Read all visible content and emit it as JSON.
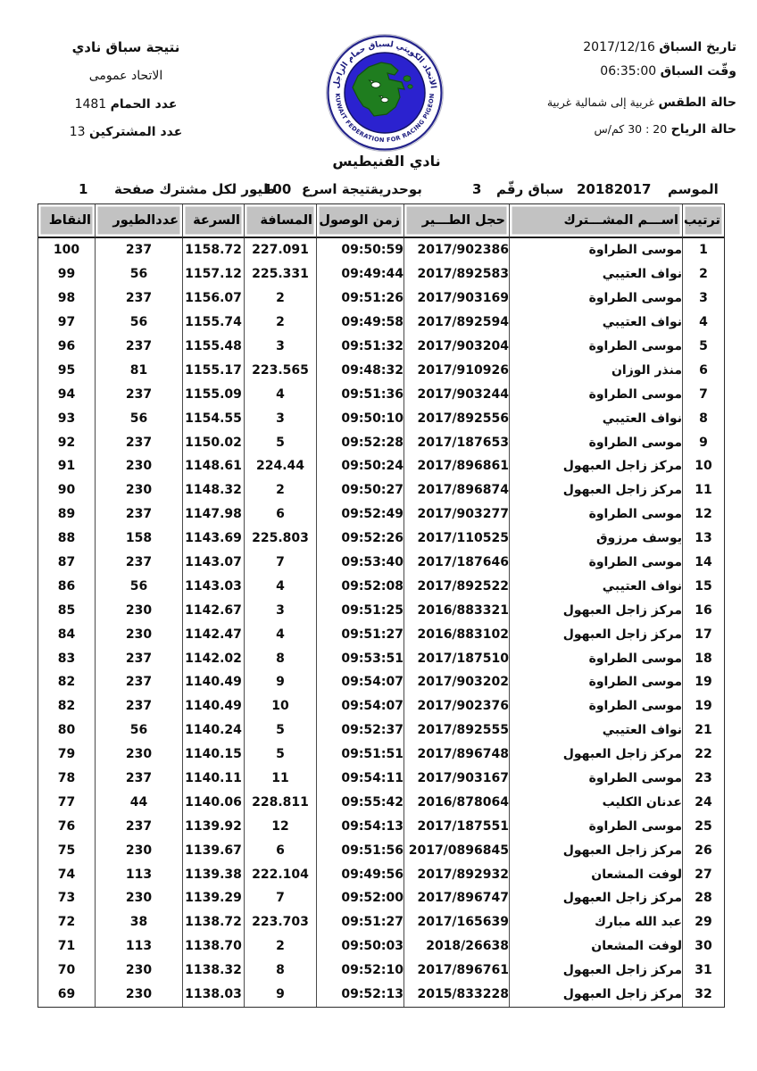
{
  "meta_left": {
    "title": "نتيجة سباق نادي",
    "federation": "الاتحاد عمومى",
    "pigeons_label": "عدد الحمام",
    "pigeons_value": "1481",
    "participants_label": "عدد المشتركين",
    "participants_value": "13"
  },
  "meta_right": {
    "date_label": "تاريخ السباق",
    "date_value": "2017/12/16",
    "time_label": "وقّت السباق",
    "time_value": "06:35:00",
    "weather_label": "حالة الطقس",
    "weather_value": "غربية إلى شمالية غربية",
    "wind_label": "حالة الرياح",
    "wind_value": "20 : 30 كم/س"
  },
  "logo": {
    "arabic_text": "الاتحاد الكويتي لسباق حمام الزاجل",
    "english_text": "KUWAIT FEDERATION FOR RACING PIGEON",
    "ring_color": "#23238a",
    "disc_color": "#2b22cf",
    "map_color": "#1f7d1f",
    "text_color": "#17177c"
  },
  "club_title": "نادي الفنيطيس",
  "season": {
    "season_label": "الموسم",
    "season_value": "20182017",
    "race_label": "سباق رقّم",
    "race_number": "3",
    "release_site": "بوحدرية",
    "result_label": "نتيجة اسرع",
    "result_count": "100",
    "result_suffix": "طيور لكل مشترك صفحة",
    "page_number": "1"
  },
  "table": {
    "headers": [
      "ترتيب",
      "اســـم المشـــترك",
      "حجل الطـــير",
      "زمن الوصول",
      "المسافة",
      "السرعة",
      "عددالطيور",
      "النقاط"
    ],
    "rows": [
      [
        "1",
        "موسى الطراوة",
        "2017/902386",
        "09:50:59",
        "227.091",
        "1158.72",
        "237",
        "100"
      ],
      [
        "2",
        "نواف العتيبي",
        "2017/892583",
        "09:49:44",
        "225.331",
        "1157.12",
        "56",
        "99"
      ],
      [
        "3",
        "موسى الطراوة",
        "2017/903169",
        "09:51:26",
        "2",
        "1156.07",
        "237",
        "98"
      ],
      [
        "4",
        "نواف العتيبي",
        "2017/892594",
        "09:49:58",
        "2",
        "1155.74",
        "56",
        "97"
      ],
      [
        "5",
        "موسى الطراوة",
        "2017/903204",
        "09:51:32",
        "3",
        "1155.48",
        "237",
        "96"
      ],
      [
        "6",
        "منذر الوزان",
        "2017/910926",
        "09:48:32",
        "223.565",
        "1155.17",
        "81",
        "95"
      ],
      [
        "7",
        "موسى الطراوة",
        "2017/903244",
        "09:51:36",
        "4",
        "1155.09",
        "237",
        "94"
      ],
      [
        "8",
        "نواف العتيبي",
        "2017/892556",
        "09:50:10",
        "3",
        "1154.55",
        "56",
        "93"
      ],
      [
        "9",
        "موسى الطراوة",
        "2017/187653",
        "09:52:28",
        "5",
        "1150.02",
        "237",
        "92"
      ],
      [
        "10",
        "مركز زاجل العبهول",
        "2017/896861",
        "09:50:24",
        "224.44",
        "1148.61",
        "230",
        "91"
      ],
      [
        "11",
        "مركز زاجل العبهول",
        "2017/896874",
        "09:50:27",
        "2",
        "1148.32",
        "230",
        "90"
      ],
      [
        "12",
        "موسى الطراوة",
        "2017/903277",
        "09:52:49",
        "6",
        "1147.98",
        "237",
        "89"
      ],
      [
        "13",
        "يوسف مرزوق",
        "2017/110525",
        "09:52:26",
        "225.803",
        "1143.69",
        "158",
        "88"
      ],
      [
        "14",
        "موسى الطراوة",
        "2017/187646",
        "09:53:40",
        "7",
        "1143.07",
        "237",
        "87"
      ],
      [
        "15",
        "نواف العتيبي",
        "2017/892522",
        "09:52:08",
        "4",
        "1143.03",
        "56",
        "86"
      ],
      [
        "16",
        "مركز زاجل العبهول",
        "2016/883321",
        "09:51:25",
        "3",
        "1142.67",
        "230",
        "85"
      ],
      [
        "17",
        "مركز زاجل العبهول",
        "2016/883102",
        "09:51:27",
        "4",
        "1142.47",
        "230",
        "84"
      ],
      [
        "18",
        "موسى الطراوة",
        "2017/187510",
        "09:53:51",
        "8",
        "1142.02",
        "237",
        "83"
      ],
      [
        "19",
        "موسى الطراوة",
        "2017/903202",
        "09:54:07",
        "9",
        "1140.49",
        "237",
        "82"
      ],
      [
        "19",
        "موسى الطراوة",
        "2017/902376",
        "09:54:07",
        "10",
        "1140.49",
        "237",
        "82"
      ],
      [
        "21",
        "نواف العتيبي",
        "2017/892555",
        "09:52:37",
        "5",
        "1140.24",
        "56",
        "80"
      ],
      [
        "22",
        "مركز زاجل العبهول",
        "2017/896748",
        "09:51:51",
        "5",
        "1140.15",
        "230",
        "79"
      ],
      [
        "23",
        "موسى الطراوة",
        "2017/903167",
        "09:54:11",
        "11",
        "1140.11",
        "237",
        "78"
      ],
      [
        "24",
        "عدنان الكليب",
        "2016/878064",
        "09:55:42",
        "228.811",
        "1140.06",
        "44",
        "77"
      ],
      [
        "25",
        "موسى الطراوة",
        "2017/187551",
        "09:54:13",
        "12",
        "1139.92",
        "237",
        "76"
      ],
      [
        "26",
        "مركز زاجل العبهول",
        "2017/0896845",
        "09:51:56",
        "6",
        "1139.67",
        "230",
        "75"
      ],
      [
        "27",
        "لوفت المشعان",
        "2017/892932",
        "09:49:56",
        "222.104",
        "1139.38",
        "113",
        "74"
      ],
      [
        "28",
        "مركز زاجل العبهول",
        "2017/896747",
        "09:52:00",
        "7",
        "1139.29",
        "230",
        "73"
      ],
      [
        "29",
        "عبد الله مبارك",
        "2017/165639",
        "09:51:27",
        "223.703",
        "1138.72",
        "38",
        "72"
      ],
      [
        "30",
        "لوفت المشعان",
        "2018/26638",
        "09:50:03",
        "2",
        "1138.70",
        "113",
        "71"
      ],
      [
        "31",
        "مركز زاجل العبهول",
        "2017/896761",
        "09:52:10",
        "8",
        "1138.32",
        "230",
        "70"
      ],
      [
        "32",
        "مركز زاجل العبهول",
        "2015/833228",
        "09:52:13",
        "9",
        "1138.03",
        "230",
        "69"
      ]
    ]
  }
}
